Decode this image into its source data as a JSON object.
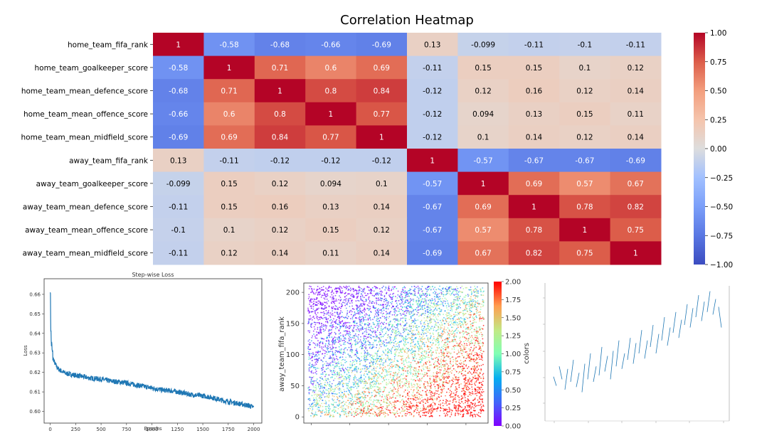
{
  "chart_data": [
    {
      "type": "heatmap",
      "title": "Correlation Heatmap",
      "row_labels": [
        "home_team_fifa_rank",
        "home_team_goalkeeper_score",
        "home_team_mean_defence_score",
        "home_team_mean_offence_score",
        "home_team_mean_midfield_score",
        "away_team_fifa_rank",
        "away_team_goalkeeper_score",
        "away_team_mean_defence_score",
        "away_team_mean_offence_score",
        "away_team_mean_midfield_score"
      ],
      "values": [
        [
          1,
          -0.58,
          -0.68,
          -0.66,
          -0.69,
          0.13,
          -0.099,
          -0.11,
          -0.1,
          -0.11
        ],
        [
          -0.58,
          1,
          0.71,
          0.6,
          0.69,
          -0.11,
          0.15,
          0.15,
          0.1,
          0.12
        ],
        [
          -0.68,
          0.71,
          1,
          0.8,
          0.84,
          -0.12,
          0.12,
          0.16,
          0.12,
          0.14
        ],
        [
          -0.66,
          0.6,
          0.8,
          1,
          0.77,
          -0.12,
          0.094,
          0.13,
          0.15,
          0.11
        ],
        [
          -0.69,
          0.69,
          0.84,
          0.77,
          1,
          -0.12,
          0.1,
          0.14,
          0.12,
          0.14
        ],
        [
          0.13,
          -0.11,
          -0.12,
          -0.12,
          -0.12,
          1,
          -0.57,
          -0.67,
          -0.67,
          -0.69
        ],
        [
          -0.099,
          0.15,
          0.12,
          0.094,
          0.1,
          -0.57,
          1,
          0.69,
          0.57,
          0.67
        ],
        [
          -0.11,
          0.15,
          0.16,
          0.13,
          0.14,
          -0.67,
          0.69,
          1,
          0.78,
          0.82
        ],
        [
          -0.1,
          0.1,
          0.12,
          0.15,
          0.12,
          -0.67,
          0.57,
          0.78,
          1,
          0.75
        ],
        [
          -0.11,
          0.12,
          0.14,
          0.11,
          0.14,
          -0.69,
          0.67,
          0.82,
          0.75,
          1
        ]
      ],
      "cell_labels": [
        [
          "1",
          "-0.58",
          "-0.68",
          "-0.66",
          "-0.69",
          "0.13",
          "-0.099",
          "-0.11",
          "-0.1",
          "-0.11"
        ],
        [
          "-0.58",
          "1",
          "0.71",
          "0.6",
          "0.69",
          "-0.11",
          "0.15",
          "0.15",
          "0.1",
          "0.12"
        ],
        [
          "-0.68",
          "0.71",
          "1",
          "0.8",
          "0.84",
          "-0.12",
          "0.12",
          "0.16",
          "0.12",
          "0.14"
        ],
        [
          "-0.66",
          "0.6",
          "0.8",
          "1",
          "0.77",
          "-0.12",
          "0.094",
          "0.13",
          "0.15",
          "0.11"
        ],
        [
          "-0.69",
          "0.69",
          "0.84",
          "0.77",
          "1",
          "-0.12",
          "0.1",
          "0.14",
          "0.12",
          "0.14"
        ],
        [
          "0.13",
          "-0.11",
          "-0.12",
          "-0.12",
          "-0.12",
          "1",
          "-0.57",
          "-0.67",
          "-0.67",
          "-0.69"
        ],
        [
          "-0.099",
          "0.15",
          "0.12",
          "0.094",
          "0.1",
          "-0.57",
          "1",
          "0.69",
          "0.57",
          "0.67"
        ],
        [
          "-0.11",
          "0.15",
          "0.16",
          "0.13",
          "0.14",
          "-0.67",
          "0.69",
          "1",
          "0.78",
          "0.82"
        ],
        [
          "-0.1",
          "0.1",
          "0.12",
          "0.15",
          "0.12",
          "-0.67",
          "0.57",
          "0.78",
          "1",
          "0.75"
        ],
        [
          "-0.11",
          "0.12",
          "0.14",
          "0.11",
          "0.14",
          "-0.69",
          "0.67",
          "0.82",
          "0.75",
          "1"
        ]
      ],
      "colormap": "coolwarm",
      "colorbar": {
        "range": [
          -1,
          1
        ],
        "ticks": [
          1,
          0.75,
          0.5,
          0.25,
          0,
          -0.25,
          -0.5,
          -0.75,
          -1
        ],
        "tick_labels": [
          "1.00",
          "0.75",
          "0.50",
          "0.25",
          "0.00",
          "−0.25",
          "−0.50",
          "−0.75",
          "−1.00"
        ]
      },
      "colors": {
        "low": "#3b4cc0",
        "mid": "#dddddd",
        "high": "#b40426"
      }
    },
    {
      "type": "line",
      "title": "Step-wise Loss",
      "xlabel": "Epochs",
      "ylabel": "Loss",
      "xlim": [
        -60,
        2080
      ],
      "ylim": [
        0.594,
        0.668
      ],
      "xticks": [
        0,
        250,
        500,
        750,
        1000,
        1250,
        1500,
        1750,
        2000
      ],
      "xtick_labels": [
        "0",
        "250",
        "500",
        "750",
        "1000",
        "1250",
        "1500",
        "1750",
        "2000"
      ],
      "yticks": [
        0.6,
        0.61,
        0.62,
        0.63,
        0.64,
        0.65,
        0.66
      ],
      "ytick_labels": [
        "0.60",
        "0.61",
        "0.62",
        "0.63",
        "0.64",
        "0.65",
        "0.66"
      ],
      "series": [
        {
          "x": [
            0,
            5,
            10,
            20,
            30,
            50,
            75,
            100,
            150,
            200,
            300,
            400,
            500,
            600,
            700,
            800,
            900,
            1000,
            1100,
            1200,
            1300,
            1400,
            1500,
            1600,
            1700,
            1800,
            1900,
            1950,
            2000
          ],
          "values": [
            0.665,
            0.645,
            0.636,
            0.63,
            0.627,
            0.624,
            0.622,
            0.621,
            0.6195,
            0.619,
            0.618,
            0.617,
            0.6165,
            0.6155,
            0.615,
            0.614,
            0.613,
            0.612,
            0.611,
            0.6105,
            0.6095,
            0.6085,
            0.608,
            0.607,
            0.6055,
            0.6045,
            0.6035,
            0.603,
            0.602
          ],
          "color": "#1f77b4"
        }
      ]
    },
    {
      "type": "scatter",
      "title": "",
      "ylabel": "away_team_fifa_rank",
      "xlabel": "",
      "ylim": [
        -10,
        215
      ],
      "yticks": [
        0,
        50,
        100,
        150,
        200
      ],
      "ytick_labels": [
        "0",
        "50",
        "100",
        "150",
        "200"
      ],
      "x_range_description": "unlabeled",
      "point_count_estimate": 6000,
      "colormap": "rainbow",
      "colorbar": {
        "label": "colors",
        "range": [
          0,
          2
        ],
        "ticks": [
          0,
          0.25,
          0.5,
          0.75,
          1,
          1.25,
          1.5,
          1.75,
          2
        ],
        "tick_labels": [
          "0.00",
          "0.25",
          "0.50",
          "0.75",
          "1.00",
          "1.25",
          "1.50",
          "1.75",
          "2.00"
        ]
      }
    },
    {
      "type": "line",
      "title": "",
      "xlabel": "",
      "ylabel": "",
      "series": [
        {
          "values": [
            0.32,
            0.25,
            0.4,
            0.3,
            0.22,
            0.38,
            0.28,
            0.45,
            0.24,
            0.35,
            0.2,
            0.42,
            0.3,
            0.5,
            0.28,
            0.4,
            0.33,
            0.55,
            0.36,
            0.48,
            0.3,
            0.52,
            0.4,
            0.6,
            0.38,
            0.5,
            0.45,
            0.62,
            0.42,
            0.58,
            0.5,
            0.68,
            0.46,
            0.6,
            0.55,
            0.72,
            0.5,
            0.65,
            0.6,
            0.78,
            0.56,
            0.7,
            0.66,
            0.82,
            0.62,
            0.76,
            0.72,
            0.88,
            0.7,
            0.85,
            0.78,
            0.95,
            0.75,
            0.9,
            0.82,
            0.98,
            0.8,
            0.92,
            0.86,
            0.7
          ],
          "color": "#1f77b4"
        }
      ]
    }
  ]
}
